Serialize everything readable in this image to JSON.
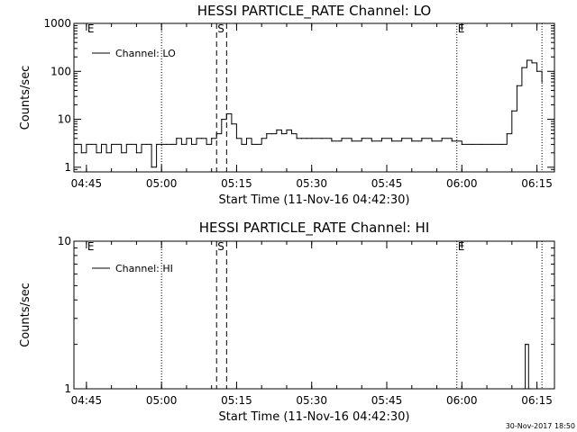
{
  "footer": {
    "timestamp": "30-Nov-2017 18:50"
  },
  "chart_data": [
    {
      "type": "line",
      "title": "HESSI PARTICLE_RATE Channel: LO",
      "xlabel": "Start Time (11-Nov-16 04:42:30)",
      "ylabel": "Counts/sec",
      "yscale": "log",
      "xlim": [
        "04:42:30",
        "06:18:30"
      ],
      "ylim": [
        0.8,
        1000
      ],
      "x_ticks": [
        "04:45",
        "05:00",
        "05:15",
        "05:30",
        "05:45",
        "06:00",
        "06:15"
      ],
      "y_ticks": [
        "1",
        "10",
        "100",
        "1000"
      ],
      "legend": {
        "position": "top-left",
        "entries": [
          "Channel: LO"
        ]
      },
      "markers": [
        {
          "label": "E",
          "time": "04:45"
        },
        {
          "label": "S",
          "time": "05:11"
        },
        {
          "label": "E",
          "time": "05:59"
        }
      ],
      "vlines_dotted": [
        "05:00",
        "05:59",
        "06:16"
      ],
      "vlines_dashed": [
        "05:11",
        "05:13"
      ],
      "series": [
        {
          "name": "Channel: LO",
          "x": [
            "04:43",
            "04:44",
            "04:45",
            "04:46",
            "04:47",
            "04:48",
            "04:49",
            "04:50",
            "04:51",
            "04:52",
            "04:53",
            "04:54",
            "04:55",
            "04:56",
            "04:57",
            "04:58",
            "04:59",
            "05:00",
            "05:01",
            "05:02",
            "05:03",
            "05:04",
            "05:05",
            "05:06",
            "05:07",
            "05:08",
            "05:09",
            "05:10",
            "05:11",
            "05:12",
            "05:13",
            "05:14",
            "05:15",
            "05:16",
            "05:17",
            "05:18",
            "05:19",
            "05:20",
            "05:21",
            "05:22",
            "05:23",
            "05:24",
            "05:25",
            "05:26",
            "05:27",
            "05:28",
            "05:29",
            "05:30",
            "05:32",
            "05:34",
            "05:36",
            "05:38",
            "05:40",
            "05:42",
            "05:44",
            "05:46",
            "05:48",
            "05:50",
            "05:52",
            "05:54",
            "05:56",
            "05:58",
            "06:00",
            "06:02",
            "06:04",
            "06:06",
            "06:08",
            "06:09",
            "06:10",
            "06:11",
            "06:12",
            "06:13",
            "06:14",
            "06:15",
            "06:16"
          ],
          "values": [
            3,
            2,
            3,
            3,
            2,
            3,
            2,
            3,
            3,
            2,
            3,
            3,
            2,
            3,
            3,
            1,
            3,
            3,
            3,
            3,
            4,
            3,
            4,
            3,
            4,
            4,
            3,
            4,
            5,
            10,
            13,
            8,
            4,
            3,
            4,
            3,
            3,
            4,
            5,
            5,
            6,
            5,
            6,
            5,
            4,
            4,
            4,
            4,
            4,
            3.5,
            4,
            3.5,
            4,
            3.5,
            4,
            3.5,
            4,
            3.5,
            4,
            3.5,
            4,
            3.5,
            3,
            3,
            3,
            3,
            3,
            5,
            15,
            50,
            120,
            170,
            150,
            100,
            60
          ]
        }
      ]
    },
    {
      "type": "line",
      "title": "HESSI PARTICLE_RATE Channel: HI",
      "xlabel": "Start Time (11-Nov-16 04:42:30)",
      "ylabel": "Counts/sec",
      "yscale": "log",
      "xlim": [
        "04:42:30",
        "06:18:30"
      ],
      "ylim": [
        1,
        10
      ],
      "x_ticks": [
        "04:45",
        "05:00",
        "05:15",
        "05:30",
        "05:45",
        "06:00",
        "06:15"
      ],
      "y_ticks": [
        "1",
        "10"
      ],
      "legend": {
        "position": "top-left",
        "entries": [
          "Channel: HI"
        ]
      },
      "markers": [
        {
          "label": "E",
          "time": "04:45"
        },
        {
          "label": "S",
          "time": "05:11"
        },
        {
          "label": "E",
          "time": "05:59"
        }
      ],
      "vlines_dotted": [
        "05:00",
        "05:59",
        "06:16"
      ],
      "vlines_dashed": [
        "05:11",
        "05:13"
      ],
      "series": [
        {
          "name": "Channel: HI",
          "x": [
            "06:12:20",
            "06:12:40",
            "06:13:00",
            "06:13:20",
            "06:13:40"
          ],
          "values": [
            1,
            2,
            2,
            1,
            1
          ]
        }
      ]
    }
  ]
}
